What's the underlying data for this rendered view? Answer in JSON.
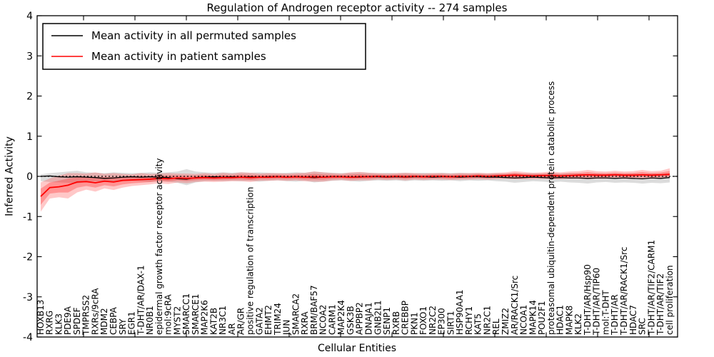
{
  "chart_data": {
    "type": "line",
    "title": "Regulation of Androgen receptor activity -- 274 samples",
    "xlabel": "Cellular Entities",
    "ylabel": "Inferred Activity",
    "ylim": [
      -4,
      4
    ],
    "yticks": [
      4,
      3,
      2,
      1,
      0,
      -1,
      -2,
      -3,
      -4
    ],
    "grid": false,
    "legend_position": "upper left",
    "reference_line": {
      "y": 0,
      "style": "dotted",
      "color": "#000000"
    },
    "colors": {
      "permuted_line": "#000000",
      "permuted_band": "#a0a0a0",
      "patient_line": "#ff0000",
      "patient_band": "#ff2020"
    },
    "categories": [
      "HOXB13",
      "RXRG",
      "KLK3",
      "PDE9A",
      "SPDEF",
      "TMPRSS2",
      "RXRs/9cRA",
      "MDM2",
      "CEBPA",
      "SRY",
      "EGR1",
      "T-DHT/AR/DAX-1",
      "NR0B1",
      "epidermal growth factor receptor activity",
      "mol:9cRA",
      "MYST2",
      "SMARCC1",
      "SMARCE1",
      "MAP2K6",
      "KAT2B",
      "NR3C1",
      "AR",
      "AR/GR",
      "positive regulation of transcription",
      "GATA2",
      "EHMT2",
      "TRIM24",
      "JUN",
      "SMARCA2",
      "RXRA",
      "BRM/BAF57",
      "NCOA2",
      "CARM1",
      "MAP2K4",
      "GSK3B",
      "APPBP2",
      "DNAJA1",
      "GNB2L1",
      "SENP1",
      "RXRB",
      "CREBBP",
      "PKN1",
      "FOXO1",
      "NR2C2",
      "EP300",
      "SIRT1",
      "HSP90AA1",
      "RCHY1",
      "KAT5",
      "NR2C1",
      "REL",
      "ZMIZ2",
      "AR/RACK1/Src",
      "NCOA1",
      "MAPK14",
      "POU2F1",
      "proteasomal ubiquitin-dependent protein catabolic process",
      "HDAC1",
      "MAPK8",
      "KLK2",
      "T-DHT/AR/Hsp90",
      "T-DHT/AR/TIP60",
      "mol:T-DHT",
      "T-DHT/AR",
      "T-DHT/AR/RACK1/Src",
      "HDAC7",
      "SRC",
      "T-DHT/AR/TIF2/CARM1",
      "T-DHT/AR/TIF2",
      "cell proliferation"
    ],
    "series": [
      {
        "name": "Mean activity in all permuted samples",
        "color": "#000000",
        "values": [
          0.0,
          0.01,
          -0.01,
          -0.02,
          -0.01,
          -0.02,
          -0.03,
          -0.05,
          -0.04,
          -0.02,
          -0.01,
          -0.02,
          -0.01,
          -0.02,
          -0.03,
          -0.06,
          -0.07,
          -0.03,
          -0.02,
          -0.01,
          -0.02,
          -0.01,
          -0.02,
          -0.01,
          -0.02,
          -0.01,
          -0.01,
          -0.02,
          -0.01,
          -0.02,
          -0.03,
          -0.02,
          -0.01,
          -0.01,
          -0.02,
          -0.02,
          -0.01,
          -0.01,
          -0.02,
          -0.01,
          -0.02,
          -0.01,
          -0.01,
          -0.02,
          -0.01,
          -0.01,
          -0.02,
          -0.01,
          -0.01,
          -0.02,
          -0.02,
          -0.03,
          -0.04,
          -0.03,
          -0.02,
          -0.03,
          -0.04,
          -0.03,
          -0.04,
          -0.04,
          -0.05,
          -0.04,
          -0.04,
          -0.05,
          -0.04,
          -0.05,
          -0.06,
          -0.04,
          -0.05,
          -0.03
        ],
        "band_hi": [
          0.05,
          0.08,
          0.1,
          0.12,
          0.14,
          0.1,
          0.09,
          0.08,
          0.1,
          0.09,
          0.08,
          0.09,
          0.1,
          0.09,
          0.1,
          0.12,
          0.18,
          0.12,
          0.1,
          0.09,
          0.1,
          0.09,
          0.1,
          0.09,
          0.1,
          0.09,
          0.08,
          0.09,
          0.1,
          0.09,
          0.12,
          0.1,
          0.09,
          0.08,
          0.09,
          0.1,
          0.09,
          0.08,
          0.09,
          0.08,
          0.09,
          0.08,
          0.09,
          0.08,
          0.09,
          0.08,
          0.09,
          0.08,
          0.08,
          0.07,
          0.08,
          0.07,
          0.08,
          0.07,
          0.08,
          0.07,
          0.08,
          0.07,
          0.08,
          0.07,
          0.06,
          0.07,
          0.06,
          0.07,
          0.06,
          0.07,
          0.06,
          0.07,
          0.06,
          0.08
        ],
        "band_lo": [
          -0.12,
          -0.14,
          -0.15,
          -0.16,
          -0.18,
          -0.14,
          -0.12,
          -0.13,
          -0.15,
          -0.12,
          -0.11,
          -0.12,
          -0.14,
          -0.12,
          -0.13,
          -0.16,
          -0.22,
          -0.15,
          -0.12,
          -0.11,
          -0.12,
          -0.11,
          -0.12,
          -0.11,
          -0.13,
          -0.11,
          -0.1,
          -0.12,
          -0.13,
          -0.11,
          -0.15,
          -0.13,
          -0.11,
          -0.1,
          -0.12,
          -0.13,
          -0.11,
          -0.1,
          -0.11,
          -0.1,
          -0.12,
          -0.1,
          -0.11,
          -0.1,
          -0.11,
          -0.1,
          -0.12,
          -0.1,
          -0.11,
          -0.1,
          -0.12,
          -0.13,
          -0.16,
          -0.14,
          -0.12,
          -0.13,
          -0.15,
          -0.13,
          -0.15,
          -0.16,
          -0.18,
          -0.15,
          -0.14,
          -0.16,
          -0.15,
          -0.16,
          -0.18,
          -0.16,
          -0.17,
          -0.15
        ]
      },
      {
        "name": "Mean activity in patient samples",
        "color": "#ff0000",
        "values": [
          -0.5,
          -0.28,
          -0.26,
          -0.22,
          -0.14,
          -0.13,
          -0.16,
          -0.12,
          -0.14,
          -0.1,
          -0.09,
          -0.08,
          -0.07,
          -0.05,
          -0.06,
          -0.04,
          -0.05,
          -0.04,
          -0.03,
          -0.04,
          -0.03,
          -0.03,
          -0.02,
          -0.03,
          -0.02,
          -0.02,
          -0.01,
          -0.02,
          -0.01,
          -0.02,
          -0.01,
          -0.02,
          -0.01,
          -0.01,
          -0.02,
          -0.01,
          -0.01,
          0.0,
          -0.01,
          0.0,
          -0.01,
          0.0,
          -0.01,
          0.0,
          0.0,
          -0.01,
          0.0,
          0.0,
          0.01,
          0.0,
          0.01,
          0.02,
          0.03,
          0.02,
          0.01,
          0.02,
          0.02,
          0.01,
          0.02,
          0.03,
          0.04,
          0.03,
          0.03,
          0.04,
          0.03,
          0.03,
          0.04,
          0.03,
          0.04,
          0.05
        ],
        "band_hi": [
          -0.15,
          -0.05,
          0.02,
          0.08,
          0.08,
          0.07,
          0.1,
          0.06,
          0.08,
          0.06,
          0.05,
          0.08,
          0.06,
          0.07,
          0.08,
          0.07,
          0.07,
          0.06,
          0.08,
          0.06,
          0.09,
          0.07,
          0.1,
          0.09,
          0.07,
          0.08,
          0.08,
          0.07,
          0.08,
          0.09,
          0.12,
          0.1,
          0.08,
          0.07,
          0.1,
          0.11,
          0.09,
          0.08,
          0.07,
          0.08,
          0.09,
          0.08,
          0.07,
          0.08,
          0.08,
          0.07,
          0.08,
          0.08,
          0.09,
          0.08,
          0.09,
          0.1,
          0.13,
          0.11,
          0.09,
          0.1,
          0.12,
          0.1,
          0.12,
          0.13,
          0.16,
          0.13,
          0.12,
          0.14,
          0.12,
          0.13,
          0.16,
          0.13,
          0.14,
          0.2
        ],
        "band_lo": [
          -0.88,
          -0.55,
          -0.52,
          -0.55,
          -0.4,
          -0.33,
          -0.38,
          -0.3,
          -0.34,
          -0.28,
          -0.24,
          -0.22,
          -0.2,
          -0.17,
          -0.19,
          -0.15,
          -0.17,
          -0.14,
          -0.13,
          -0.14,
          -0.13,
          -0.12,
          -0.12,
          -0.14,
          -0.11,
          -0.11,
          -0.1,
          -0.11,
          -0.1,
          -0.12,
          -0.13,
          -0.13,
          -0.1,
          -0.09,
          -0.11,
          -0.1,
          -0.1,
          -0.08,
          -0.09,
          -0.08,
          -0.1,
          -0.08,
          -0.09,
          -0.08,
          -0.08,
          -0.09,
          -0.08,
          -0.08,
          -0.07,
          -0.08,
          -0.07,
          -0.06,
          -0.07,
          -0.07,
          -0.07,
          -0.06,
          -0.07,
          -0.07,
          -0.06,
          -0.06,
          -0.07,
          -0.06,
          -0.06,
          -0.05,
          -0.06,
          -0.06,
          -0.05,
          -0.06,
          -0.05,
          -0.04
        ]
      }
    ]
  }
}
